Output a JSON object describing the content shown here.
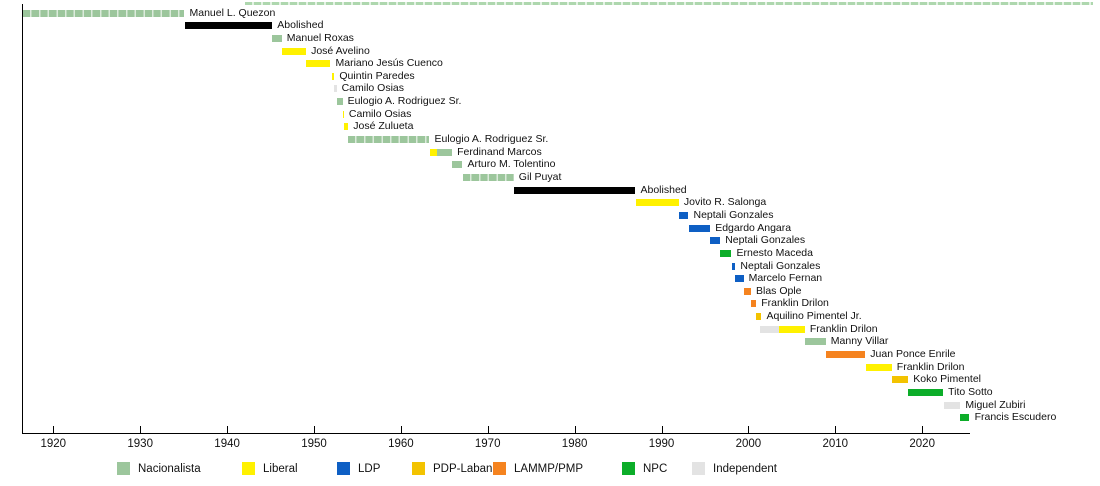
{
  "chart_data": {
    "type": "bar",
    "variant": "horizontal-timeline-gantt",
    "title": "",
    "x_axis": {
      "range": [
        1916.4,
        2025.5
      ],
      "ticks": [
        "1920",
        "1930",
        "1940",
        "1950",
        "1960",
        "1970",
        "1980",
        "1990",
        "2000",
        "2010",
        "2020"
      ],
      "grid": false
    },
    "abolished_color": "#000000",
    "legend": {
      "position": "bottom",
      "entries": [
        {
          "label": "Nacionalista",
          "color": "#9CC69C"
        },
        {
          "label": "Liberal",
          "color": "#FFF100"
        },
        {
          "label": "LDP",
          "color": "#0E5FC4"
        },
        {
          "label": "PDP-Laban",
          "color": "#F3C300"
        },
        {
          "label": "LAMMP/PMP",
          "color": "#F5831F"
        },
        {
          "label": "NPC",
          "color": "#0CAD29"
        },
        {
          "label": "Independent",
          "color": "#E3E3E3"
        }
      ]
    },
    "rows": [
      {
        "label": "Manuel L. Quezon",
        "segments": [
          {
            "party": "Nacionalista",
            "start": 1916.5,
            "end": 1935.1,
            "segmented": true
          }
        ]
      },
      {
        "label": "Abolished",
        "segments": [
          {
            "party": "Abolished",
            "start": 1935.1,
            "end": 1945.2
          }
        ]
      },
      {
        "label": "Manuel Roxas",
        "segments": [
          {
            "party": "Nacionalista",
            "start": 1945.2,
            "end": 1946.3
          }
        ]
      },
      {
        "label": "José Avelino",
        "segments": [
          {
            "party": "Liberal",
            "start": 1946.3,
            "end": 1949.1
          }
        ]
      },
      {
        "label": "Mariano Jesús Cuenco",
        "segments": [
          {
            "party": "Liberal",
            "start": 1949.1,
            "end": 1951.9
          }
        ]
      },
      {
        "label": "Quintin Paredes",
        "segments": [
          {
            "party": "Liberal",
            "start": 1952.1,
            "end": 1952.35
          }
        ]
      },
      {
        "label": "Camilo Osias",
        "segments": [
          {
            "party": "Independent",
            "start": 1952.35,
            "end": 1952.6
          }
        ]
      },
      {
        "label": "Eulogio A. Rodriguez Sr.",
        "segments": [
          {
            "party": "Nacionalista",
            "start": 1952.6,
            "end": 1953.3
          }
        ]
      },
      {
        "label": "Camilo Osias",
        "segments": [
          {
            "party": "Liberal",
            "start": 1953.3,
            "end": 1953.45
          }
        ]
      },
      {
        "label": "José Zulueta",
        "segments": [
          {
            "party": "Liberal",
            "start": 1953.45,
            "end": 1953.95
          }
        ]
      },
      {
        "label": "Eulogio A. Rodriguez Sr.",
        "segments": [
          {
            "party": "Nacionalista",
            "start": 1953.95,
            "end": 1963.3,
            "segmented": true
          }
        ]
      },
      {
        "label": "Ferdinand Marcos",
        "segments": [
          {
            "party": "Liberal",
            "start": 1963.3,
            "end": 1964.1
          },
          {
            "party": "Nacionalista",
            "start": 1964.1,
            "end": 1965.9
          }
        ]
      },
      {
        "label": "Arturo M. Tolentino",
        "segments": [
          {
            "party": "Nacionalista",
            "start": 1965.9,
            "end": 1967.1
          }
        ]
      },
      {
        "label": "Gil Puyat",
        "segments": [
          {
            "party": "Nacionalista",
            "start": 1967.1,
            "end": 1973.0,
            "segmented": true
          }
        ]
      },
      {
        "label": "Abolished",
        "segments": [
          {
            "party": "Abolished",
            "start": 1973.0,
            "end": 1987.0
          }
        ]
      },
      {
        "label": "Jovito R. Salonga",
        "segments": [
          {
            "party": "Liberal",
            "start": 1987.1,
            "end": 1992.0
          }
        ]
      },
      {
        "label": "Neptali Gonzales",
        "segments": [
          {
            "party": "LDP",
            "start": 1992.0,
            "end": 1993.1
          }
        ]
      },
      {
        "label": "Edgardo Angara",
        "segments": [
          {
            "party": "LDP",
            "start": 1993.1,
            "end": 1995.6
          }
        ]
      },
      {
        "label": "Neptali Gonzales",
        "segments": [
          {
            "party": "LDP",
            "start": 1995.6,
            "end": 1996.75
          }
        ]
      },
      {
        "label": "Ernesto Maceda",
        "segments": [
          {
            "party": "NPC",
            "start": 1996.75,
            "end": 1998.05
          }
        ]
      },
      {
        "label": "Neptali Gonzales",
        "segments": [
          {
            "party": "LDP",
            "start": 1998.05,
            "end": 1998.5
          }
        ]
      },
      {
        "label": "Marcelo Fernan",
        "segments": [
          {
            "party": "LDP",
            "start": 1998.5,
            "end": 1999.45
          }
        ]
      },
      {
        "label": "Blas Ople",
        "segments": [
          {
            "party": "LAMMP/PMP",
            "start": 1999.5,
            "end": 2000.3
          }
        ]
      },
      {
        "label": "Franklin Drilon",
        "segments": [
          {
            "party": "LAMMP/PMP",
            "start": 2000.3,
            "end": 2000.9
          }
        ]
      },
      {
        "label": "Aquilino Pimentel Jr.",
        "segments": [
          {
            "party": "PDP-Laban",
            "start": 2000.9,
            "end": 2001.5
          }
        ]
      },
      {
        "label": "Franklin Drilon",
        "segments": [
          {
            "party": "Independent",
            "start": 2001.3,
            "end": 2003.5
          },
          {
            "party": "Liberal",
            "start": 2003.5,
            "end": 2006.5
          }
        ]
      },
      {
        "label": "Manny Villar",
        "segments": [
          {
            "party": "Nacionalista",
            "start": 2006.55,
            "end": 2008.9
          }
        ]
      },
      {
        "label": "Juan Ponce Enrile",
        "segments": [
          {
            "party": "LAMMP/PMP",
            "start": 2008.9,
            "end": 2013.45
          }
        ]
      },
      {
        "label": "Franklin Drilon",
        "segments": [
          {
            "party": "Liberal",
            "start": 2013.5,
            "end": 2016.5
          }
        ]
      },
      {
        "label": "Koko Pimentel",
        "segments": [
          {
            "party": "PDP-Laban",
            "start": 2016.55,
            "end": 2018.4
          }
        ]
      },
      {
        "label": "Tito Sotto",
        "segments": [
          {
            "party": "NPC",
            "start": 2018.4,
            "end": 2022.4
          }
        ]
      },
      {
        "label": "Miguel Zubiri",
        "segments": [
          {
            "party": "Independent",
            "start": 2022.5,
            "end": 2024.4
          }
        ]
      },
      {
        "label": "Francis Escudero",
        "segments": [
          {
            "party": "NPC",
            "start": 2024.4,
            "end": 2025.45
          }
        ]
      }
    ]
  }
}
